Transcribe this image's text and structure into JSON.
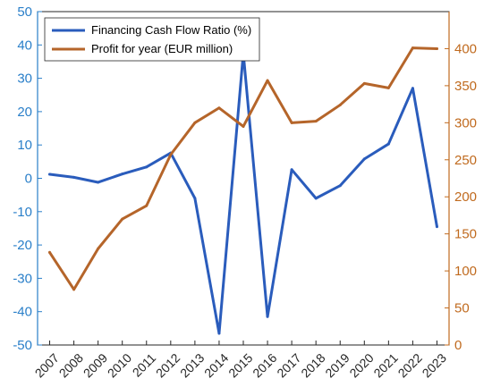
{
  "chart_data": {
    "type": "line",
    "categories": [
      "2007",
      "2008",
      "2009",
      "2010",
      "2011",
      "2012",
      "2013",
      "2014",
      "2015",
      "2016",
      "2017",
      "2018",
      "2019",
      "2020",
      "2021",
      "2022",
      "2023"
    ],
    "series": [
      {
        "name": "Financing Cash Flow Ratio (%)",
        "axis": "left",
        "color": "#2a5cbc",
        "values": [
          1.2,
          0.3,
          -1.2,
          1.3,
          3.4,
          7.6,
          -6.0,
          -46.5,
          37.5,
          -41.5,
          2.6,
          -6.0,
          -2.2,
          5.8,
          10.3,
          27.0,
          -14.5
        ]
      },
      {
        "name": "Profit for year (EUR million)",
        "axis": "right",
        "color": "#b5652a",
        "values": [
          125,
          75,
          130,
          170,
          188,
          257,
          300,
          320,
          295,
          357,
          300,
          302,
          324,
          353,
          347,
          401,
          400
        ]
      }
    ],
    "y_left": {
      "ylim": [
        -50,
        50
      ],
      "ticks": [
        "50",
        "40",
        "30",
        "20",
        "10",
        "0",
        "-10",
        "-20",
        "-30",
        "-40",
        "-50"
      ],
      "color": "#2a7fc9"
    },
    "y_right": {
      "ylim": [
        0,
        450
      ],
      "ticks": [
        "400",
        "350",
        "300",
        "250",
        "200",
        "150",
        "100",
        "50",
        "0"
      ],
      "color": "#c06a1e"
    },
    "grid": false,
    "legend": "top-left"
  }
}
